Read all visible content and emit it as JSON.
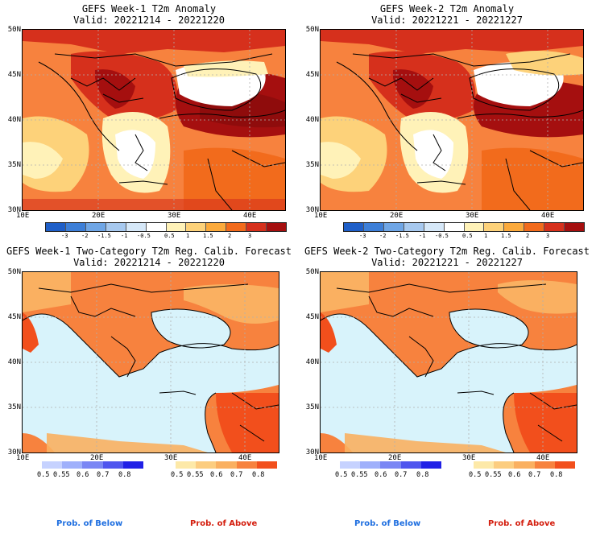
{
  "panels": {
    "tl": {
      "title": "GEFS Week-1 T2m Anomaly",
      "valid": "Valid: 20221214 - 20221220"
    },
    "tr": {
      "title": "GEFS Week-2 T2m Anomaly",
      "valid": "Valid: 20221221 - 20221227"
    },
    "bl": {
      "title": "GEFS Week-1 Two-Category T2m Reg. Calib. Forecast",
      "valid": "Valid: 20221214 - 20221220"
    },
    "br": {
      "title": "GEFS Week-2 Two-Category T2m Reg. Calib. Forecast",
      "valid": "Valid: 20221221 - 20221227"
    }
  },
  "axes": {
    "lat_labels": [
      "50N",
      "45N",
      "40N",
      "35N",
      "30N"
    ],
    "lon_labels": [
      "10E",
      "20E",
      "30E",
      "40E"
    ]
  },
  "anomaly_colorbar": {
    "labels": [
      "-3",
      "-2",
      "-1.5",
      "-1",
      "-0.5",
      "0.5",
      "1",
      "1.5",
      "2",
      "3"
    ],
    "colors": [
      "#1f5fc8",
      "#3d7fd8",
      "#6fa6e6",
      "#a7c9ef",
      "#d6e8f8",
      "#ffffff",
      "#fff2b8",
      "#fdd27a",
      "#fbaa3c",
      "#f26b1c",
      "#d6301c",
      "#a50f0f"
    ]
  },
  "prob_colorbars": {
    "below": {
      "labels": [
        "0.5",
        "0.55",
        "0.6",
        "0.7",
        "0.8"
      ],
      "colors": [
        "#c6d2ff",
        "#9fb0fb",
        "#7a86f4",
        "#4f55ee",
        "#2020e6"
      ]
    },
    "above": {
      "labels": [
        "0.5",
        "0.55",
        "0.6",
        "0.7",
        "0.8"
      ],
      "colors": [
        "#fde9a8",
        "#fccd80",
        "#fab061",
        "#f7823e",
        "#f24f1c"
      ]
    }
  },
  "legend": {
    "below": "Prob. of Below",
    "above": "Prob. of Above",
    "below_color": "#1f6fe0",
    "above_color": "#d41f0f"
  },
  "colors": {
    "sea_prob": "#d8f3fb",
    "border": "#000000",
    "grid": "#b0b0b0"
  }
}
